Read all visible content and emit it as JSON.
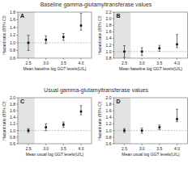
{
  "chart_data": [
    {
      "type": "scatter",
      "title": "Baseline gamma-glutamyltransferase values",
      "annotations": [
        "A"
      ],
      "xlabel": "Mean baseline log GGT levels(U/L)",
      "ylabel": "Hazard ratio (95% CI)",
      "x": [
        2.5,
        3.0,
        3.5,
        4.0
      ],
      "series": [
        {
          "values": [
            1.0,
            1.08,
            1.15,
            1.45
          ],
          "error_low": [
            0.2,
            0.1,
            0.09,
            0.12
          ],
          "error_high": [
            0.2,
            0.1,
            0.09,
            0.32
          ],
          "color": "#111111",
          "marker": "square"
        }
      ],
      "xlim": [
        2.2,
        4.3
      ],
      "ylim": [
        0.6,
        1.8
      ],
      "xticks": [
        2.5,
        {
          "value": 3.0,
          "label": "3.0"
        },
        3.5,
        {
          "value": 4.0,
          "label": "4.0"
        }
      ],
      "yticks": [
        0.6,
        0.8,
        {
          "value": 1.0,
          "label": "1.0"
        },
        1.2,
        1.4,
        1.6,
        1.8
      ],
      "reference_line": 1.0,
      "shaded_x": [
        2.2,
        2.68
      ]
    },
    {
      "type": "scatter",
      "annotations": [
        "B"
      ],
      "xlabel": "Mean baseline log GGT levels(U/L)",
      "ylabel": "Hazard ratio (95% CI)",
      "x": [
        2.5,
        3.0,
        3.5,
        4.0
      ],
      "series": [
        {
          "values": [
            1.0,
            1.0,
            1.1,
            1.22
          ],
          "error_low": [
            0.18,
            0.12,
            0.09,
            0.1
          ],
          "error_high": [
            0.18,
            0.12,
            0.09,
            0.3
          ],
          "color": "#111111",
          "marker": "square"
        }
      ],
      "xlim": [
        2.2,
        4.3
      ],
      "ylim": [
        0.8,
        2.2
      ],
      "xticks": [
        2.5,
        {
          "value": 3.0,
          "label": "3.0"
        },
        3.5,
        {
          "value": 4.0,
          "label": "4.0"
        }
      ],
      "yticks": [
        0.8,
        {
          "value": 1.0,
          "label": "1.0"
        },
        1.2,
        1.4,
        1.6,
        1.8,
        {
          "value": 2.0,
          "label": "2.0"
        },
        2.2
      ],
      "reference_line": 1.0,
      "shaded_x": [
        2.2,
        2.68
      ]
    },
    {
      "type": "scatter",
      "title": "Usual gamma-glutamyltransferase values",
      "annotations": [
        "C"
      ],
      "xlabel": "Mean usual log GGT levels(U/L)",
      "ylabel": "Hazard ratio (95% CI)",
      "x": [
        2.5,
        3.0,
        3.5,
        4.0
      ],
      "series": [
        {
          "values": [
            1.0,
            1.1,
            1.18,
            1.58
          ],
          "error_low": [
            0.06,
            0.1,
            0.08,
            0.1
          ],
          "error_high": [
            0.06,
            0.1,
            0.08,
            0.18
          ],
          "color": "#111111",
          "marker": "square"
        }
      ],
      "xlim": [
        2.2,
        4.3
      ],
      "ylim": [
        0.6,
        2.0
      ],
      "xticks": [
        2.5,
        {
          "value": 3.0,
          "label": "3.0"
        },
        3.5,
        {
          "value": 4.0,
          "label": "4.0"
        }
      ],
      "yticks": [
        0.6,
        0.8,
        {
          "value": 1.0,
          "label": "1.0"
        },
        1.2,
        1.4,
        1.6,
        1.8,
        {
          "value": 2.0,
          "label": "2.0"
        }
      ],
      "reference_line": 1.0,
      "shaded_x": [
        2.2,
        2.68
      ]
    },
    {
      "type": "scatter",
      "annotations": [
        "D"
      ],
      "xlabel": "Mean usual log GGT levels(U/L)",
      "ylabel": "Hazard ratio (95% CI)",
      "x": [
        2.5,
        3.0,
        3.5,
        4.0
      ],
      "series": [
        {
          "values": [
            1.0,
            1.0,
            1.1,
            1.35
          ],
          "error_low": [
            0.06,
            0.08,
            0.07,
            0.08
          ],
          "error_high": [
            0.06,
            0.08,
            0.07,
            0.3
          ],
          "color": "#111111",
          "marker": "square"
        }
      ],
      "xlim": [
        2.2,
        4.3
      ],
      "ylim": [
        0.6,
        2.0
      ],
      "xticks": [
        2.5,
        {
          "value": 3.0,
          "label": "3.0"
        },
        3.5,
        {
          "value": 4.0,
          "label": "4.0"
        }
      ],
      "yticks": [
        0.6,
        0.8,
        {
          "value": 1.0,
          "label": "1.0"
        },
        1.2,
        1.4,
        1.6,
        1.8,
        {
          "value": 2.0,
          "label": "2.0"
        }
      ],
      "reference_line": 1.0,
      "shaded_x": [
        2.2,
        2.68
      ]
    }
  ]
}
